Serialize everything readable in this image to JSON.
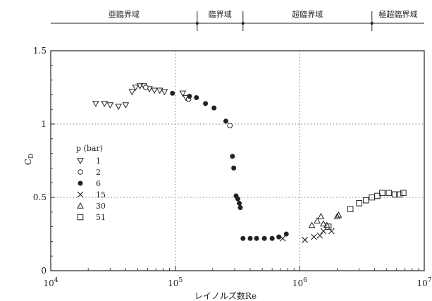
{
  "chart_data": {
    "type": "scatter",
    "x_scale": "log",
    "xlim": [
      10000,
      10000000
    ],
    "ylim": [
      0,
      1.5
    ],
    "x_ticks": [
      {
        "value": 10000,
        "base": "10",
        "exp": "4"
      },
      {
        "value": 100000,
        "base": "10",
        "exp": "5"
      },
      {
        "value": 1000000,
        "base": "10",
        "exp": "6"
      },
      {
        "value": 10000000,
        "base": "10",
        "exp": "7"
      }
    ],
    "y_ticks": [
      {
        "value": 0,
        "label": "0"
      },
      {
        "value": 0.5,
        "label": "0.5"
      },
      {
        "value": 1,
        "label": "1"
      },
      {
        "value": 1.5,
        "label": "1.5"
      }
    ],
    "xlabel": "レイノルズ数Re",
    "ylabel": "C",
    "ylabel_sub": "D",
    "grid": "dotted",
    "regimes": [
      {
        "name": "亜臨界域",
        "from": 10000,
        "to": 150000
      },
      {
        "name": "臨界域",
        "from": 150000,
        "to": 350000
      },
      {
        "name": "超臨界域",
        "from": 350000,
        "to": 3800000
      },
      {
        "name": "極超臨界域",
        "from": 3800000,
        "to": 10000000
      }
    ],
    "legend_title": "p (bar)",
    "legend_position": "left-middle",
    "series": [
      {
        "name": "1",
        "marker": "triangle-down",
        "points": [
          [
            23000,
            1.14
          ],
          [
            27000,
            1.14
          ],
          [
            30000,
            1.13
          ],
          [
            35000,
            1.12
          ],
          [
            40000,
            1.13
          ],
          [
            45000,
            1.22
          ],
          [
            48000,
            1.25
          ],
          [
            52000,
            1.26
          ],
          [
            56000,
            1.26
          ],
          [
            62000,
            1.24
          ],
          [
            68000,
            1.23
          ],
          [
            75000,
            1.23
          ],
          [
            82000,
            1.22
          ],
          [
            115000,
            1.21
          ],
          [
            122000,
            1.18
          ]
        ]
      },
      {
        "name": "2",
        "marker": "circle-open",
        "points": [
          [
            58000,
            1.25
          ],
          [
            128000,
            1.17
          ],
          [
            275000,
            0.99
          ]
        ]
      },
      {
        "name": "6",
        "marker": "circle-filled",
        "points": [
          [
            95000,
            1.21
          ],
          [
            130000,
            1.19
          ],
          [
            148000,
            1.18
          ],
          [
            175000,
            1.14
          ],
          [
            205000,
            1.11
          ],
          [
            255000,
            1.02
          ],
          [
            288000,
            0.78
          ],
          [
            295000,
            0.7
          ],
          [
            308000,
            0.51
          ],
          [
            318000,
            0.49
          ],
          [
            327000,
            0.46
          ],
          [
            333000,
            0.43
          ],
          [
            350000,
            0.22
          ],
          [
            400000,
            0.22
          ],
          [
            450000,
            0.22
          ],
          [
            520000,
            0.22
          ],
          [
            600000,
            0.22
          ],
          [
            680000,
            0.23
          ],
          [
            780000,
            0.25
          ]
        ]
      },
      {
        "name": "15",
        "marker": "cross",
        "points": [
          [
            730000,
            0.22
          ],
          [
            1100000,
            0.21
          ],
          [
            1300000,
            0.23
          ],
          [
            1450000,
            0.24
          ],
          [
            1550000,
            0.27
          ],
          [
            1800000,
            0.27
          ]
        ]
      },
      {
        "name": "30",
        "marker": "triangle-up",
        "points": [
          [
            1250000,
            0.31
          ],
          [
            1380000,
            0.34
          ],
          [
            1480000,
            0.37
          ],
          [
            1550000,
            0.32
          ],
          [
            1650000,
            0.31
          ],
          [
            2000000,
            0.37
          ],
          [
            2050000,
            0.38
          ]
        ]
      },
      {
        "name": "51",
        "marker": "square-open",
        "points": [
          [
            1700000,
            0.3
          ],
          [
            2550000,
            0.42
          ],
          [
            3000000,
            0.46
          ],
          [
            3400000,
            0.48
          ],
          [
            3800000,
            0.5
          ],
          [
            4200000,
            0.51
          ],
          [
            4600000,
            0.53
          ],
          [
            5200000,
            0.53
          ],
          [
            5800000,
            0.52
          ],
          [
            6300000,
            0.52
          ],
          [
            6800000,
            0.53
          ]
        ]
      }
    ]
  }
}
